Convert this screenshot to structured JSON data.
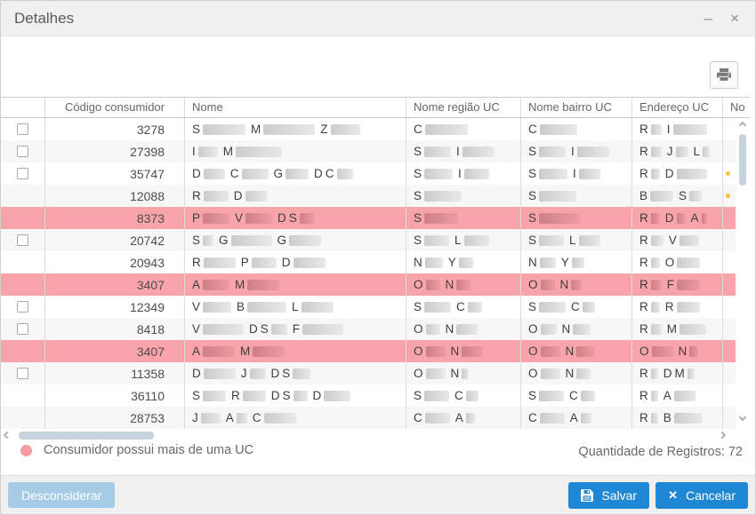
{
  "window": {
    "title": "Detalhes",
    "minimize_glyph": "–",
    "close_glyph": "×"
  },
  "table": {
    "columns": [
      "",
      "Código consumidor",
      "Nome",
      "Nome região UC",
      "Nome bairro UC",
      "Endereço UC",
      "No"
    ],
    "rows": [
      {
        "checkbox": true,
        "pink": false,
        "marker": false,
        "code": "3278",
        "nome": [
          "S",
          48,
          "M",
          58,
          "Z",
          33
        ],
        "regiao": [
          "C",
          48
        ],
        "bairro": [
          "C",
          42
        ],
        "endereco": [
          "R",
          12,
          "I",
          38
        ]
      },
      {
        "checkbox": true,
        "pink": false,
        "marker": false,
        "code": "27398",
        "nome": [
          "I",
          22,
          "M",
          52
        ],
        "regiao": [
          "S",
          30,
          "I",
          36
        ],
        "bairro": [
          "S",
          30,
          "I",
          36
        ],
        "endereco": [
          "R",
          12,
          "J",
          14,
          "L",
          8
        ]
      },
      {
        "checkbox": true,
        "pink": false,
        "marker": true,
        "code": "35747",
        "nome": [
          "D",
          24,
          "C",
          30,
          "G",
          26,
          "D",
          "C",
          18
        ],
        "regiao": [
          "S",
          32,
          "I",
          28
        ],
        "bairro": [
          "S",
          32,
          "I",
          24
        ],
        "endereco": [
          "R",
          10,
          "D",
          34
        ]
      },
      {
        "checkbox": false,
        "pink": false,
        "marker": true,
        "code": "12088",
        "nome": [
          "R",
          28,
          "D",
          24
        ],
        "regiao": [
          "S",
          42
        ],
        "bairro": [
          "S",
          42
        ],
        "endereco": [
          "B",
          26,
          "S",
          14
        ]
      },
      {
        "checkbox": false,
        "pink": true,
        "marker": false,
        "code": "8373",
        "nome": [
          "P",
          30,
          "V",
          30,
          "D",
          "S",
          16
        ],
        "regiao": [
          "S",
          38
        ],
        "bairro": [
          "S",
          46
        ],
        "endereco": [
          "R",
          10,
          "D",
          10,
          "A",
          6
        ]
      },
      {
        "checkbox": true,
        "pink": false,
        "marker": false,
        "code": "20742",
        "nome": [
          "S",
          12,
          "G",
          46,
          "G",
          36
        ],
        "regiao": [
          "S",
          28,
          "L",
          28
        ],
        "bairro": [
          "S",
          28,
          "L",
          24
        ],
        "endereco": [
          "R",
          14,
          "V",
          22
        ]
      },
      {
        "checkbox": false,
        "pink": false,
        "marker": false,
        "code": "20943",
        "nome": [
          "R",
          36,
          "P",
          28,
          "D",
          36
        ],
        "regiao": [
          "N",
          20,
          "Y",
          16
        ],
        "bairro": [
          "N",
          18,
          "Y",
          14
        ],
        "endereco": [
          "R",
          10,
          "O",
          26
        ]
      },
      {
        "checkbox": false,
        "pink": true,
        "marker": false,
        "code": "3407",
        "nome": [
          "A",
          30,
          "M",
          36
        ],
        "regiao": [
          "O",
          16,
          "N",
          16
        ],
        "bairro": [
          "O",
          16,
          "N",
          12
        ],
        "endereco": [
          "R",
          12,
          "F",
          26
        ]
      },
      {
        "checkbox": true,
        "pink": false,
        "marker": false,
        "code": "12349",
        "nome": [
          "V",
          32,
          "B",
          44,
          "L",
          36
        ],
        "regiao": [
          "S",
          30,
          "C",
          16
        ],
        "bairro": [
          "S",
          30,
          "C",
          14
        ],
        "endereco": [
          "R",
          10,
          "R",
          26
        ]
      },
      {
        "checkbox": true,
        "pink": false,
        "marker": false,
        "code": "8418",
        "nome": [
          "V",
          46,
          "D",
          "S",
          18,
          "F",
          46
        ],
        "regiao": [
          "O",
          16,
          "N",
          24
        ],
        "bairro": [
          "O",
          18,
          "N",
          20
        ],
        "endereco": [
          "R",
          12,
          "M",
          30
        ]
      },
      {
        "checkbox": false,
        "pink": true,
        "marker": false,
        "code": "3407",
        "nome": [
          "A",
          36,
          "M",
          36
        ],
        "regiao": [
          "O",
          22,
          "N",
          24
        ],
        "bairro": [
          "O",
          22,
          "N",
          20
        ],
        "endereco": [
          "O",
          24,
          "N",
          10
        ]
      },
      {
        "checkbox": true,
        "pink": false,
        "marker": false,
        "code": "11358",
        "nome": [
          "D",
          36,
          "J",
          18,
          "D",
          "S",
          20
        ],
        "regiao": [
          "O",
          22,
          "N",
          8
        ],
        "bairro": [
          "O",
          22,
          "N",
          16
        ],
        "endereco": [
          "R",
          8,
          "D",
          "M",
          8
        ]
      },
      {
        "checkbox": false,
        "pink": false,
        "marker": false,
        "code": "36110",
        "nome": [
          "S",
          26,
          "R",
          26,
          "D",
          "S",
          16,
          "D",
          30
        ],
        "regiao": [
          "S",
          28,
          "C",
          14
        ],
        "bairro": [
          "S",
          28,
          "C",
          16
        ],
        "endereco": [
          "R",
          8,
          "A",
          24
        ]
      },
      {
        "checkbox": false,
        "pink": false,
        "marker": false,
        "code": "28753",
        "nome": [
          "J",
          22,
          "A",
          12,
          "C",
          36
        ],
        "regiao": [
          "C",
          28,
          "A",
          10
        ],
        "bairro": [
          "C",
          28,
          "A",
          12
        ],
        "endereco": [
          "R",
          8,
          "B",
          32
        ]
      }
    ]
  },
  "legend": {
    "label": "Consumidor possui mais de uma UC"
  },
  "summary": {
    "label": "Quantidade de Registros:",
    "value": "72"
  },
  "buttons": {
    "desconsiderar": "Desconsiderar",
    "salvar": "Salvar",
    "cancelar": "Cancelar"
  },
  "icons": {
    "cancel_glyph": "✕"
  },
  "colors": {
    "accent_blue": "#1f87d3",
    "disabled_blue": "#a6cbe7",
    "highlight_pink": "#f8a4aa",
    "legend_dot": "#f79ba2"
  }
}
